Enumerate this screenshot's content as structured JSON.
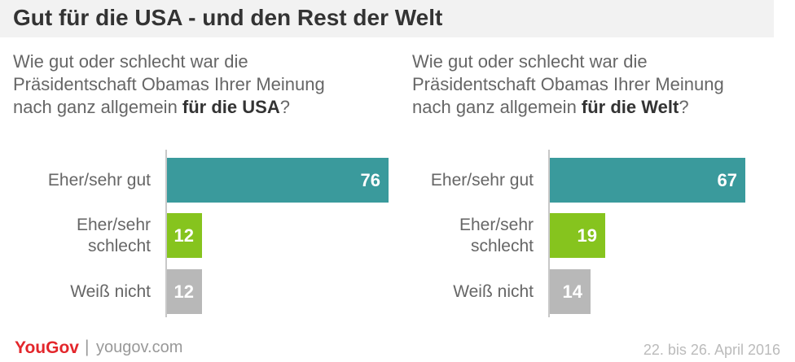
{
  "header": {
    "title": "Gut für die USA - und den Rest der Welt"
  },
  "footer": {
    "logo": "YouGov",
    "separator": "|",
    "url": "yougov.com",
    "date": "22. bis 26. April 2016"
  },
  "colors": {
    "teal": "#3a9a9c",
    "green": "#86c41e",
    "gray": "#b8b8b8"
  },
  "chart_data": [
    {
      "type": "bar",
      "orientation": "horizontal",
      "question_lines": [
        "Wie gut oder schlecht war die",
        "Präsidentschaft Obamas Ihrer Meinung"
      ],
      "question_tail_plain": "nach ganz allgemein ",
      "question_tail_bold": "für die USA",
      "question_tail_end": "?",
      "categories": [
        "Eher/sehr gut",
        "Eher/sehr schlecht",
        "Weiß nicht"
      ],
      "values": [
        76,
        12,
        12
      ],
      "bar_colors": [
        "#3a9a9c",
        "#86c41e",
        "#b8b8b8"
      ],
      "xlim": [
        0,
        100
      ]
    },
    {
      "type": "bar",
      "orientation": "horizontal",
      "question_lines": [
        "Wie gut oder schlecht war die",
        "Präsidentschaft Obamas Ihrer Meinung"
      ],
      "question_tail_plain": "nach ganz allgemein ",
      "question_tail_bold": "für die Welt",
      "question_tail_end": "?",
      "categories": [
        "Eher/sehr gut",
        "Eher/sehr schlecht",
        "Weiß nicht"
      ],
      "values": [
        67,
        19,
        14
      ],
      "bar_colors": [
        "#3a9a9c",
        "#86c41e",
        "#b8b8b8"
      ],
      "xlim": [
        0,
        100
      ]
    }
  ]
}
